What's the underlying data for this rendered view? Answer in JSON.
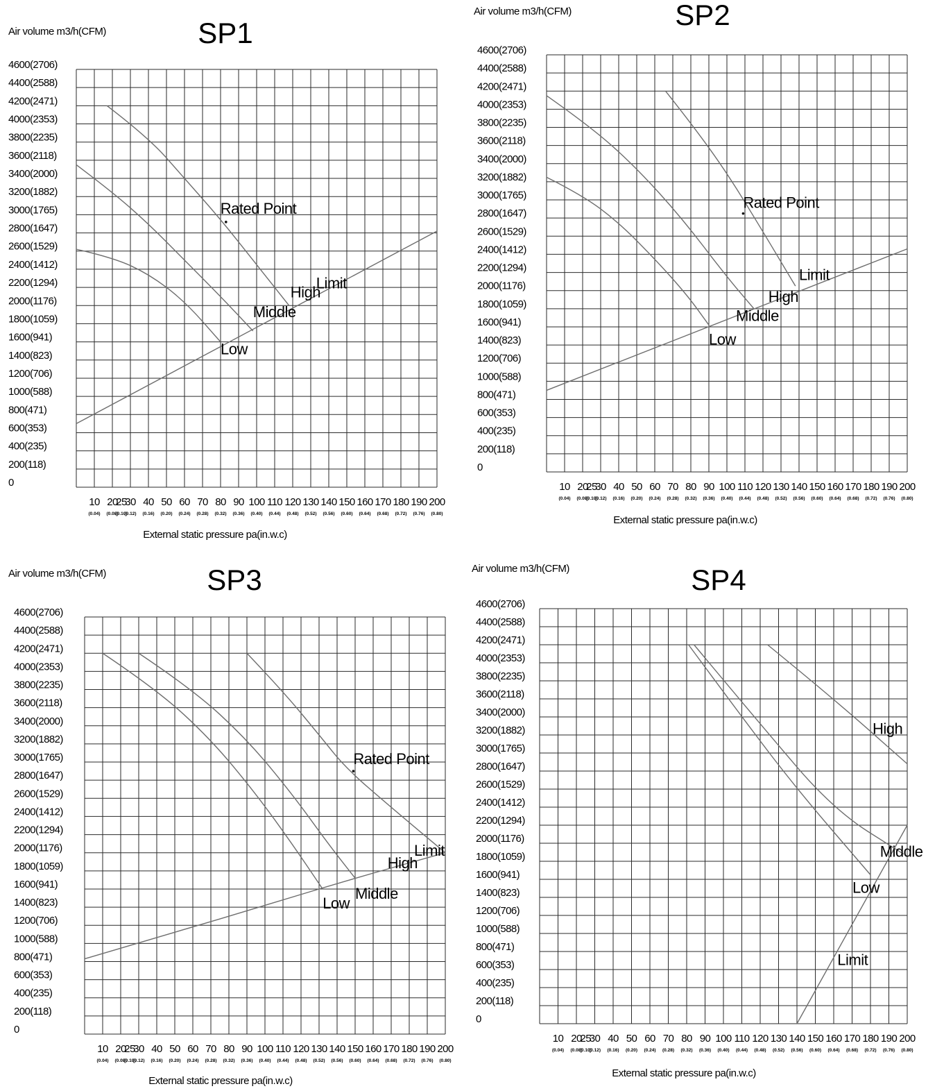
{
  "shared": {
    "y_axis_title": "Air volume m3/h(CFM)",
    "x_axis_title": "External static pressure pa(in.w.c)",
    "y_tick_labels": [
      "0",
      "200(118)",
      "400(235)",
      "600(353)",
      "800(471)",
      "1000(588)",
      "1200(706)",
      "1400(823)",
      "1600(941)",
      "1800(1059)",
      "2000(1176)",
      "2200(1294)",
      "2400(1412)",
      "2600(1529)",
      "2800(1647)",
      "3000(1765)",
      "3200(1882)",
      "3400(2000)",
      "3600(2118)",
      "3800(2235)",
      "4000(2353)",
      "4200(2471)",
      "4400(2588)",
      "4600(2706)"
    ],
    "x_tick_labels": [
      "10",
      "20",
      "25",
      "30",
      "40",
      "50",
      "60",
      "70",
      "80",
      "90",
      "100",
      "110",
      "120",
      "130",
      "140",
      "150",
      "160",
      "170",
      "180",
      "190",
      "200"
    ],
    "x_sub_labels": [
      "(0.04)",
      "(0.08)",
      "(0.10)",
      "(0.12)",
      "(0.16)",
      "(0.20)",
      "(0.24)",
      "(0.28)",
      "(0.32)",
      "(0.36)",
      "(0.40)",
      "(0.44)",
      "(0.48)",
      "(0.52)",
      "(0.56)",
      "(0.60)",
      "(0.64)",
      "(0.68)",
      "(0.72)",
      "(0.76)",
      "(0.80)"
    ]
  },
  "chart_data": [
    {
      "type": "line",
      "title": "SP1",
      "xlabel": "External static pressure pa(in.w.c)",
      "ylabel": "Air volume m3/h(CFM)",
      "xlim": [
        0,
        200
      ],
      "ylim": [
        0,
        4600
      ],
      "grid": true,
      "series": [
        {
          "name": "High",
          "points": [
            [
              17,
              4200
            ],
            [
              40,
              3850
            ],
            [
              60,
              3400
            ],
            [
              80,
              2950
            ],
            [
              100,
              2450
            ],
            [
              118,
              2000
            ]
          ]
        },
        {
          "name": "Middle",
          "points": [
            [
              0,
              3550
            ],
            [
              20,
              3250
            ],
            [
              40,
              2900
            ],
            [
              60,
              2500
            ],
            [
              80,
              2100
            ],
            [
              98,
              1720
            ]
          ]
        },
        {
          "name": "Low",
          "points": [
            [
              0,
              2620
            ],
            [
              20,
              2530
            ],
            [
              40,
              2350
            ],
            [
              60,
              2050
            ],
            [
              80,
              1600
            ]
          ]
        },
        {
          "name": "Limit",
          "points": [
            [
              0,
              700
            ],
            [
              50,
              1230
            ],
            [
              100,
              1760
            ],
            [
              150,
              2290
            ],
            [
              200,
              2820
            ]
          ]
        }
      ],
      "annotations": [
        {
          "text": "Rated Point",
          "x": 83,
          "y": 2920
        },
        {
          "text": "High",
          "x": 118,
          "y": 2000
        },
        {
          "text": "Middle",
          "x": 98,
          "y": 1720
        },
        {
          "text": "Low",
          "x": 80,
          "y": 1600
        },
        {
          "text": "Limit",
          "x": 133,
          "y": 2160
        }
      ]
    },
    {
      "type": "line",
      "title": "SP2",
      "xlabel": "External static pressure pa(in.w.c)",
      "ylabel": "Air volume m3/h(CFM)",
      "xlim": [
        0,
        200
      ],
      "ylim": [
        0,
        4600
      ],
      "grid": true,
      "series": [
        {
          "name": "High",
          "points": [
            [
              66,
              4200
            ],
            [
              80,
              3850
            ],
            [
              100,
              3300
            ],
            [
              120,
              2650
            ],
            [
              138,
              2050
            ]
          ]
        },
        {
          "name": "Middle",
          "points": [
            [
              0,
              4150
            ],
            [
              25,
              3800
            ],
            [
              50,
              3350
            ],
            [
              75,
              2800
            ],
            [
              100,
              2150
            ],
            [
              115,
              1800
            ]
          ]
        },
        {
          "name": "Low",
          "points": [
            [
              0,
              3250
            ],
            [
              20,
              3050
            ],
            [
              40,
              2750
            ],
            [
              60,
              2350
            ],
            [
              78,
              1950
            ],
            [
              90,
              1620
            ]
          ]
        },
        {
          "name": "Limit",
          "points": [
            [
              0,
              900
            ],
            [
              50,
              1290
            ],
            [
              100,
              1680
            ],
            [
              150,
              2070
            ],
            [
              200,
              2460
            ]
          ]
        }
      ],
      "annotations": [
        {
          "text": "Rated Point",
          "x": 109,
          "y": 2850
        },
        {
          "text": "High",
          "x": 123,
          "y": 1860
        },
        {
          "text": "Middle",
          "x": 105,
          "y": 1650
        },
        {
          "text": "Low",
          "x": 90,
          "y": 1620
        },
        {
          "text": "Limit",
          "x": 140,
          "y": 2070
        }
      ]
    },
    {
      "type": "line",
      "title": "SP3",
      "xlabel": "External static pressure pa(in.w.c)",
      "ylabel": "Air volume m3/h(CFM)",
      "xlim": [
        0,
        200
      ],
      "ylim": [
        0,
        4600
      ],
      "grid": true,
      "series": [
        {
          "name": "High",
          "points": [
            [
              90,
              4200
            ],
            [
              110,
              3780
            ],
            [
              130,
              3300
            ],
            [
              145,
              2930
            ],
            [
              170,
              2500
            ],
            [
              200,
              2000
            ]
          ]
        },
        {
          "name": "Middle",
          "points": [
            [
              30,
              4200
            ],
            [
              60,
              3800
            ],
            [
              90,
              3250
            ],
            [
              115,
              2650
            ],
            [
              135,
              2100
            ],
            [
              150,
              1720
            ]
          ]
        },
        {
          "name": "Low",
          "points": [
            [
              10,
              4200
            ],
            [
              40,
              3800
            ],
            [
              70,
              3250
            ],
            [
              95,
              2650
            ],
            [
              115,
              2100
            ],
            [
              132,
              1600
            ]
          ]
        },
        {
          "name": "Limit",
          "points": [
            [
              0,
              830
            ],
            [
              50,
              1120
            ],
            [
              100,
              1420
            ],
            [
              150,
              1720
            ],
            [
              200,
              2000
            ]
          ]
        }
      ],
      "annotations": [
        {
          "text": "Rated Point",
          "x": 149,
          "y": 2900
        },
        {
          "text": "High",
          "x": 168,
          "y": 1800
        },
        {
          "text": "Middle",
          "x": 150,
          "y": 1600
        },
        {
          "text": "Low",
          "x": 132,
          "y": 1600
        },
        {
          "text": "Limit",
          "x": 185,
          "y": 1950
        }
      ]
    },
    {
      "type": "line",
      "title": "SP4",
      "xlabel": "External static pressure pa(in.w.c)",
      "ylabel": "Air volume m3/h(CFM)",
      "xlim": [
        0,
        200
      ],
      "ylim": [
        0,
        4600
      ],
      "grid": true,
      "series": [
        {
          "name": "High",
          "points": [
            [
              124,
              4200
            ],
            [
              160,
              3600
            ],
            [
              200,
              2880
            ]
          ]
        },
        {
          "name": "Middle",
          "points": [
            [
              84,
              4200
            ],
            [
              120,
              3320
            ],
            [
              160,
              2370
            ],
            [
              198,
              1880
            ]
          ]
        },
        {
          "name": "Low",
          "points": [
            [
              81,
              4200
            ],
            [
              110,
              3400
            ],
            [
              140,
              2600
            ],
            [
              180,
              1650
            ]
          ]
        },
        {
          "name": "Limit",
          "points": [
            [
              140,
              0
            ],
            [
              170,
              1100
            ],
            [
              200,
              2200
            ]
          ]
        }
      ],
      "annotations": [
        {
          "text": "High",
          "x": 200,
          "y": 3150
        },
        {
          "text": "Middle",
          "x": 198,
          "y": 1880
        },
        {
          "text": "Low",
          "x": 180,
          "y": 1650
        },
        {
          "text": "Limit",
          "x": 162,
          "y": 650
        }
      ]
    }
  ]
}
